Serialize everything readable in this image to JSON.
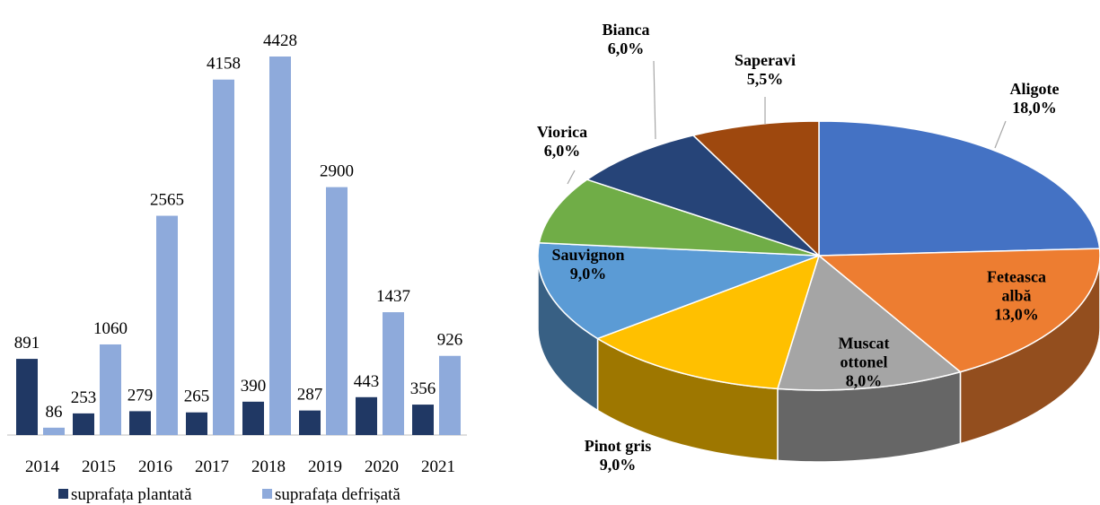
{
  "chart_data": [
    {
      "type": "bar",
      "categories": [
        "2014",
        "2015",
        "2016",
        "2017",
        "2018",
        "2019",
        "2020",
        "2021"
      ],
      "series": [
        {
          "name": "suprafața plantată",
          "color": "#203864",
          "values": [
            891,
            253,
            279,
            265,
            390,
            287,
            443,
            356
          ]
        },
        {
          "name": "suprafața defrișată",
          "color": "#8eaadb",
          "values": [
            86,
            1060,
            2565,
            4158,
            4428,
            2900,
            1437,
            926
          ]
        }
      ],
      "legend": "bottom"
    },
    {
      "type": "pie",
      "categories": [
        "Aligote",
        "Feteasca albă",
        "Muscat ottonel",
        "Pinot gris",
        "Sauvignon",
        "Viorica",
        "Bianca",
        "Saperavi"
      ],
      "values": [
        18,
        13,
        8,
        9,
        9,
        6,
        6,
        5.5
      ],
      "value_labels": [
        "18,0%",
        "13,0%",
        "8,0%",
        "9,0%",
        "9,0%",
        "6,0%",
        "6,0%",
        "5,5%"
      ],
      "colors": [
        "#4472c4",
        "#ed7d31",
        "#a5a5a5",
        "#ffc000",
        "#5b9bd5",
        "#70ad47",
        "#264478",
        "#9e480e"
      ]
    }
  ]
}
